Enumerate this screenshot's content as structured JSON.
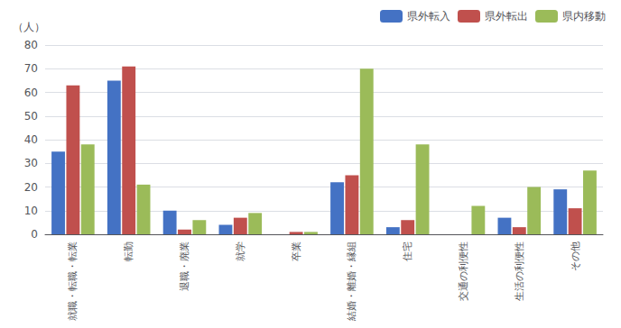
{
  "chart_data": {
    "type": "bar",
    "ylabel": "（人）",
    "categories": [
      "就職・転職・転業",
      "転勤",
      "退職・廃業",
      "就学",
      "卒業",
      "結婚・離婚・縁組",
      "住宅",
      "交通の利便性",
      "生活の利便性",
      "その他"
    ],
    "series": [
      {
        "name": "県外転入",
        "color": "#4472C4",
        "values": [
          35,
          65,
          10,
          4,
          0,
          22,
          3,
          0,
          7,
          19
        ]
      },
      {
        "name": "県外転出",
        "color": "#C0504D",
        "values": [
          63,
          71,
          2,
          7,
          1,
          25,
          6,
          0,
          3,
          11
        ]
      },
      {
        "name": "県内移動",
        "color": "#9BBB59",
        "values": [
          38,
          21,
          6,
          9,
          1,
          70,
          38,
          12,
          20,
          27
        ]
      }
    ],
    "ylim": [
      0,
      80
    ],
    "yticks": [
      0,
      10,
      20,
      30,
      40,
      50,
      60,
      70,
      80
    ],
    "grid": true,
    "legend": "upper right"
  }
}
